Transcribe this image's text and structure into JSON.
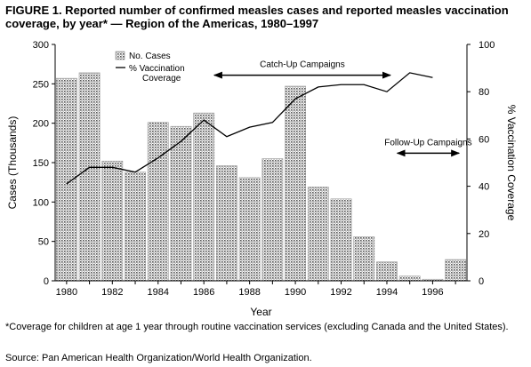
{
  "header": {
    "title": "FIGURE 1. Reported number of confirmed measles cases and reported measles vaccination coverage, by year* — Region of the Americas, 1980–1997"
  },
  "footer": {
    "footnote": "*Coverage for children at age 1 year through routine vaccination services (excluding Canada and the United States).",
    "source": "Source: Pan American Health Organization/World Health Organization."
  },
  "chart_data": {
    "type": "bar",
    "title": "FIGURE 1. Reported number of confirmed measles cases and reported measles vaccination coverage, by year* — Region of the Americas, 1980–1997",
    "xlabel": "Year",
    "ylabel": "Cases (Thousands)",
    "y2label": "% Vaccination Coverage",
    "x": [
      1980,
      1981,
      1982,
      1983,
      1984,
      1985,
      1986,
      1987,
      1988,
      1989,
      1990,
      1991,
      1992,
      1993,
      1994,
      1995,
      1996,
      1997
    ],
    "x_tick_labels": [
      "1980",
      "1982",
      "1984",
      "1986",
      "1988",
      "1990",
      "1992",
      "1994",
      "1996"
    ],
    "ylim": [
      0,
      300
    ],
    "y_ticks": [
      0,
      50,
      100,
      150,
      200,
      250,
      300
    ],
    "y2lim": [
      0,
      100
    ],
    "y2_ticks": [
      0,
      20,
      40,
      60,
      80,
      100
    ],
    "series": [
      {
        "name": "No. Cases",
        "type": "bar",
        "axis": "left",
        "values": [
          257,
          264,
          152,
          138,
          201,
          196,
          213,
          146,
          131,
          155,
          247,
          119,
          104,
          56,
          24,
          6,
          2,
          27
        ]
      },
      {
        "name": "% Vaccination\nCoverage",
        "type": "line",
        "axis": "right",
        "values": [
          41,
          48,
          48,
          46,
          52,
          59,
          68,
          61,
          65,
          67,
          77,
          82,
          83,
          83,
          80,
          88,
          86,
          null
        ]
      }
    ],
    "annotations": [
      {
        "text": "Catch-Up Campaigns",
        "from": 1987,
        "to": 1994,
        "y_axis": "right",
        "y": 87
      },
      {
        "text": "Follow-Up Campaigns",
        "from": 1995,
        "to": 1997,
        "y_axis": "right",
        "y": 54
      }
    ],
    "legend": "top-left",
    "grid": false
  }
}
